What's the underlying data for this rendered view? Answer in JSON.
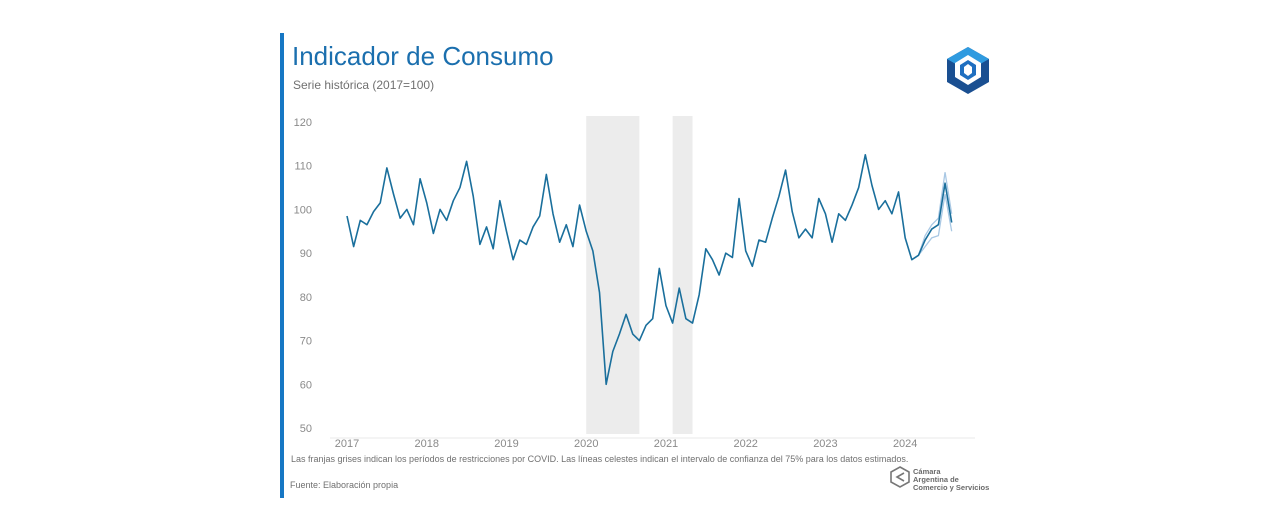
{
  "header": {
    "title": "Indicador de Consumo",
    "subtitle": "Serie histórica (2017=100)"
  },
  "footer": {
    "note": "Las franjas grises indican los períodos de restricciones por COVID. Las líneas celestes indican el intervalo de confianza del 75% para los datos estimados.",
    "source": "Fuente: Elaboración propia",
    "org_name_lines": [
      "Cámara",
      "Argentina de",
      "Comercio y Servicios"
    ]
  },
  "colors": {
    "accent": "#1677c4",
    "series": "#1a6f9c",
    "confidence": "#a9c8e4",
    "shade": "#ececec"
  },
  "chart_data": {
    "type": "line",
    "title": "Indicador de Consumo",
    "subtitle": "Serie histórica (2017=100)",
    "xlabel": "",
    "ylabel": "",
    "ylim": [
      50,
      120
    ],
    "yticks": [
      "50",
      "60",
      "70",
      "80",
      "90",
      "100",
      "110",
      "120"
    ],
    "xtick_labels": [
      "2017",
      "2018",
      "2019",
      "2020",
      "2021",
      "2022",
      "2023",
      "2024"
    ],
    "grid": false,
    "start": "2017-01",
    "shaded_periods": [
      {
        "label": "Restricciones COVID",
        "from": "2020-01",
        "to": "2020-09"
      },
      {
        "label": "Restricciones COVID",
        "from": "2021-02",
        "to": "2021-05"
      }
    ],
    "series": [
      {
        "name": "Indicador de Consumo",
        "values": [
          98.5,
          91.5,
          97.5,
          96.5,
          99.5,
          101.5,
          109.5,
          103.5,
          98,
          100,
          96.5,
          107,
          101.5,
          94.5,
          100,
          97.5,
          102,
          105,
          111,
          103,
          92,
          96,
          91,
          102,
          95,
          88.5,
          93,
          92,
          96,
          98.5,
          108,
          99,
          92.5,
          96.5,
          91.5,
          101,
          95,
          90.5,
          81,
          60,
          67.5,
          71.5,
          76,
          71.5,
          70,
          73.5,
          75,
          86.5,
          78,
          74,
          82,
          75,
          74,
          80.5,
          91,
          88.5,
          85,
          90,
          89,
          102.5,
          90.5,
          87,
          93,
          92.5,
          98,
          103,
          109,
          99.5,
          93.5,
          95.5,
          93.5,
          102.5,
          99,
          92.5,
          99,
          97.5,
          101,
          105,
          112.5,
          105.5,
          100,
          102,
          99,
          104,
          93.5,
          88.5,
          89.5,
          93,
          95.5,
          96.5,
          106,
          97
        ]
      }
    ],
    "confidence_interval": {
      "level": "75%",
      "from": "2024-03",
      "lower": [
        89.5,
        91.5,
        93.5,
        94,
        103.5,
        95
      ],
      "upper": [
        89.5,
        94,
        96.5,
        98,
        108.5,
        99
      ]
    }
  }
}
